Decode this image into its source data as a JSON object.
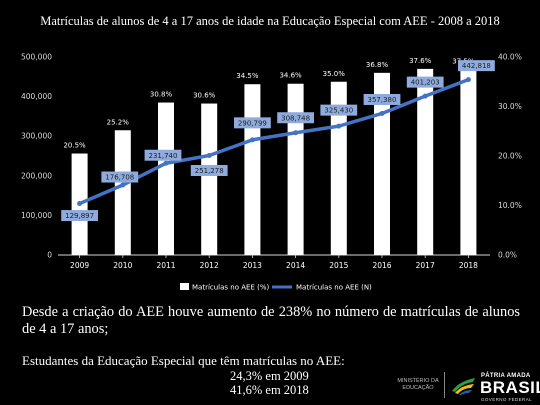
{
  "title": "Matrículas de alunos de 4 a 17 anos de idade na Educação Especial com AEE - 2008 a 2018",
  "chart_data": {
    "type": "bar+line",
    "categories": [
      "2009",
      "2010",
      "2011",
      "2012",
      "2013",
      "2014",
      "2015",
      "2016",
      "2017",
      "2018"
    ],
    "series": [
      {
        "name": "Matrículas no AEE (%)",
        "kind": "bar",
        "axis": "right",
        "values": [
          20.5,
          25.2,
          30.8,
          30.6,
          34.5,
          34.6,
          35.0,
          36.8,
          37.6,
          37.5
        ],
        "labels": [
          "20.5%",
          "25.2%",
          "30.8%",
          "30.6%",
          "34.5%",
          "34.6%",
          "35.0%",
          "36.8%",
          "37.6%",
          "37.5%"
        ]
      },
      {
        "name": "Matrículas no AEE (N)",
        "kind": "line",
        "axis": "left",
        "values": [
          129897,
          176708,
          231740,
          251278,
          290799,
          308748,
          325430,
          357380,
          401203,
          442818
        ],
        "labels": [
          "129,897",
          "176,708",
          "231,740",
          "251,278",
          "290,799",
          "308,748",
          "325,430",
          "357,380",
          "401,203",
          "442,818"
        ]
      }
    ],
    "y_left": {
      "min": 0,
      "max": 500000,
      "ticks": [
        0,
        100000,
        200000,
        300000,
        400000,
        500000
      ],
      "tick_labels": [
        "0",
        "100,000",
        "200,000",
        "300,000",
        "400,000",
        "500,000"
      ]
    },
    "y_right": {
      "min": 0,
      "max": 40,
      "ticks": [
        0,
        10,
        20,
        30,
        40
      ],
      "tick_labels": [
        "0.0%",
        "10.0%",
        "20.0%",
        "30.0%",
        "40.0%"
      ]
    },
    "legend_position": "bottom",
    "grid": false,
    "colors": {
      "bar": "#ffffff",
      "line": "#4472c4",
      "label_box": "#8faadc",
      "axis": "#d9d9d9"
    }
  },
  "headline": "Desde a criação do AEE houve aumento de 238% no número de matrículas de alunos de 4 a 17 anos;",
  "note": {
    "title": "Estudantes da Educação Especial que têm matrículas no AEE:",
    "line1": "24,3% em 2009",
    "line2": "41,6% em 2018"
  },
  "footer": {
    "ministry": "MINISTÉRIO DA EDUCAÇÃO",
    "brand_line1": "PÁTRIA AMADA",
    "brand_line2": "BRASIL",
    "brand_line3": "GOVERNO FEDERAL",
    "flag_icon": "brazil-flag-icon"
  }
}
